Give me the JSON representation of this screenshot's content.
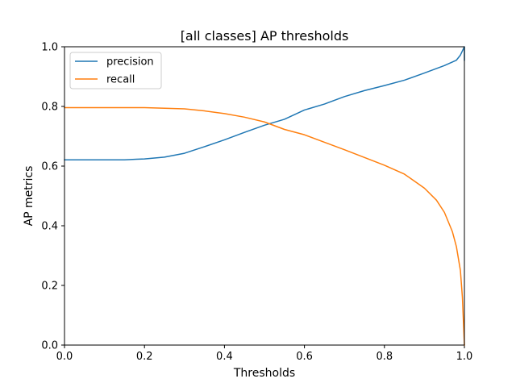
{
  "chart_data": {
    "type": "line",
    "title": "[all classes] AP thresholds",
    "xlabel": "Thresholds",
    "ylabel": "AP metrics",
    "xlim": [
      0.0,
      1.0
    ],
    "ylim": [
      0.0,
      1.0
    ],
    "xticks": [
      "0.0",
      "0.2",
      "0.4",
      "0.6",
      "0.8",
      "1.0"
    ],
    "yticks": [
      "0.0",
      "0.2",
      "0.4",
      "0.6",
      "0.8",
      "1.0"
    ],
    "legend_position": "top-left",
    "series": [
      {
        "name": "precision",
        "color": "#1f77b4",
        "x": [
          0.0,
          0.05,
          0.1,
          0.15,
          0.18,
          0.2,
          0.25,
          0.3,
          0.35,
          0.4,
          0.45,
          0.5,
          0.55,
          0.6,
          0.65,
          0.7,
          0.75,
          0.8,
          0.85,
          0.9,
          0.95,
          0.98,
          0.99,
          1.0,
          1.0
        ],
        "y": [
          0.621,
          0.621,
          0.621,
          0.621,
          0.623,
          0.624,
          0.63,
          0.643,
          0.665,
          0.688,
          0.713,
          0.737,
          0.757,
          0.788,
          0.808,
          0.833,
          0.853,
          0.87,
          0.888,
          0.912,
          0.937,
          0.955,
          0.972,
          1.0,
          0.955
        ]
      },
      {
        "name": "recall",
        "color": "#ff7f0e",
        "x": [
          0.0,
          0.1,
          0.2,
          0.25,
          0.3,
          0.35,
          0.4,
          0.45,
          0.5,
          0.55,
          0.6,
          0.65,
          0.7,
          0.75,
          0.8,
          0.85,
          0.88,
          0.9,
          0.93,
          0.95,
          0.97,
          0.98,
          0.99,
          0.995,
          1.0
        ],
        "y": [
          0.796,
          0.796,
          0.796,
          0.794,
          0.792,
          0.785,
          0.776,
          0.764,
          0.748,
          0.723,
          0.705,
          0.68,
          0.655,
          0.629,
          0.603,
          0.573,
          0.545,
          0.526,
          0.486,
          0.445,
          0.38,
          0.33,
          0.25,
          0.16,
          0.0
        ]
      }
    ]
  }
}
